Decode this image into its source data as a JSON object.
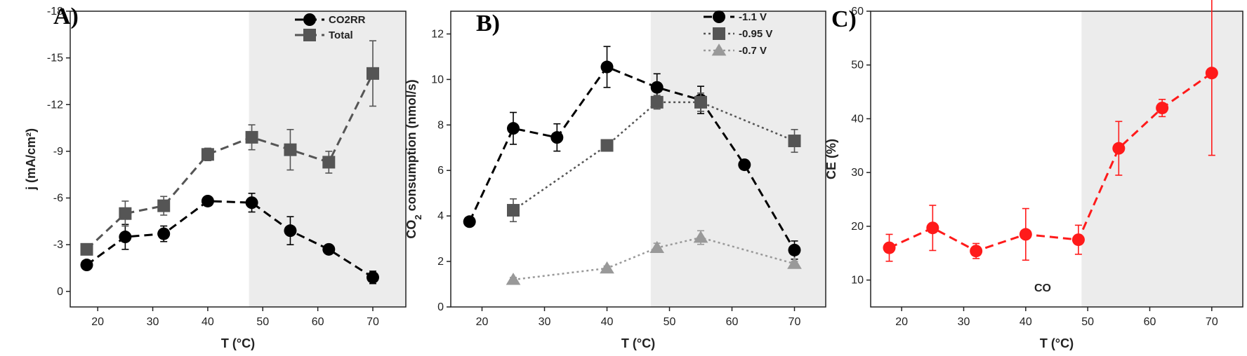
{
  "chart_data": [
    {
      "type": "line",
      "panel_label": "A)",
      "xlabel": "T (°C)",
      "ylabel": "j (mA/cm²)",
      "xlim": [
        15,
        76
      ],
      "ylim": [
        1,
        -18
      ],
      "x_ticks": [
        20,
        30,
        40,
        50,
        60,
        70
      ],
      "x_tick_labels": [
        "20",
        "30",
        "40",
        "50",
        "60",
        "70"
      ],
      "y_ticks": [
        0,
        -3,
        -6,
        -9,
        -12,
        -15,
        -18
      ],
      "y_tick_labels": [
        "0",
        "-3",
        "-6",
        "-9",
        "-12",
        "-15",
        "-18"
      ],
      "shaded_range": [
        47.5,
        76
      ],
      "legend_position": "top-right",
      "series": [
        {
          "name": "CO2RR",
          "color": "#000000",
          "marker": "circle",
          "line_style": "dashed",
          "x": [
            18,
            25,
            32,
            40,
            48,
            55,
            62,
            70
          ],
          "y": [
            -1.7,
            -3.5,
            -3.7,
            -5.8,
            -5.7,
            -3.9,
            -2.7,
            -0.9
          ],
          "err": [
            0.3,
            0.8,
            0.5,
            0.2,
            0.6,
            0.9,
            0.2,
            0.4
          ]
        },
        {
          "name": "Total",
          "color": "#555555",
          "marker": "square",
          "line_style": "dashed",
          "x": [
            18,
            25,
            32,
            40,
            48,
            55,
            62,
            70
          ],
          "y": [
            -2.7,
            -5.0,
            -5.5,
            -8.8,
            -9.9,
            -9.1,
            -8.3,
            -14.0
          ],
          "err": [
            0.3,
            0.8,
            0.6,
            0.4,
            0.8,
            1.3,
            0.7,
            2.1
          ]
        }
      ]
    },
    {
      "type": "line",
      "panel_label": "B)",
      "xlabel": "T (°C)",
      "ylabel_main": "CO",
      "ylabel_sub": "2",
      "ylabel_rest": " consumption (nmol/s)",
      "xlim": [
        15,
        75
      ],
      "ylim": [
        0,
        13
      ],
      "x_ticks": [
        20,
        30,
        40,
        50,
        60,
        70
      ],
      "x_tick_labels": [
        "20",
        "30",
        "40",
        "50",
        "60",
        "70"
      ],
      "y_ticks": [
        0,
        2,
        4,
        6,
        8,
        10,
        12
      ],
      "y_tick_labels": [
        "0",
        "2",
        "4",
        "6",
        "8",
        "10",
        "12"
      ],
      "shaded_range": [
        47,
        75
      ],
      "legend_position": "top-right",
      "series": [
        {
          "name": "-1.1 V",
          "color": "#000000",
          "marker": "circle",
          "line_style": "dashed",
          "x": [
            18,
            25,
            32,
            40,
            48,
            55,
            62,
            70
          ],
          "y": [
            3.75,
            7.85,
            7.45,
            10.55,
            9.65,
            9.1,
            6.25,
            2.5
          ],
          "err": [
            0.2,
            0.7,
            0.6,
            0.9,
            0.6,
            0.6,
            0.2,
            0.4
          ]
        },
        {
          "name": "-0.95 V",
          "color": "#555555",
          "marker": "square",
          "line_style": "dotted",
          "x": [
            25,
            40,
            48,
            55,
            70
          ],
          "y": [
            4.25,
            7.1,
            9.0,
            9.0,
            7.3
          ],
          "err": [
            0.5,
            0.2,
            0.3,
            0.4,
            0.5
          ]
        },
        {
          "name": "-0.7 V",
          "color": "#999999",
          "marker": "triangle",
          "line_style": "dotted",
          "x": [
            25,
            40,
            48,
            55,
            70
          ],
          "y": [
            1.2,
            1.7,
            2.6,
            3.05,
            1.9
          ],
          "err": [
            0.1,
            0.1,
            0.2,
            0.3,
            0.1
          ]
        }
      ]
    },
    {
      "type": "line",
      "panel_label": "C)",
      "xlabel": "T (°C)",
      "ylabel": "CE (%)",
      "xlim": [
        15,
        75
      ],
      "ylim": [
        5,
        60
      ],
      "x_ticks": [
        20,
        30,
        40,
        50,
        60,
        70
      ],
      "x_tick_labels": [
        "20",
        "30",
        "40",
        "50",
        "60",
        "70"
      ],
      "y_ticks": [
        10,
        20,
        30,
        40,
        50,
        60
      ],
      "y_tick_labels": [
        "10",
        "20",
        "30",
        "40",
        "50",
        "60"
      ],
      "shaded_range": [
        49,
        75
      ],
      "annotation": "CO",
      "series": [
        {
          "color": "#ff1a1a",
          "marker": "circle",
          "line_style": "dashed",
          "x": [
            18,
            25,
            32,
            40,
            48.5,
            55,
            62,
            70
          ],
          "y": [
            16.0,
            19.7,
            15.4,
            18.5,
            17.5,
            34.5,
            42.0,
            48.5
          ],
          "err": [
            2.5,
            4.2,
            1.4,
            4.8,
            2.7,
            5.0,
            1.6,
            15.3
          ]
        }
      ]
    }
  ]
}
